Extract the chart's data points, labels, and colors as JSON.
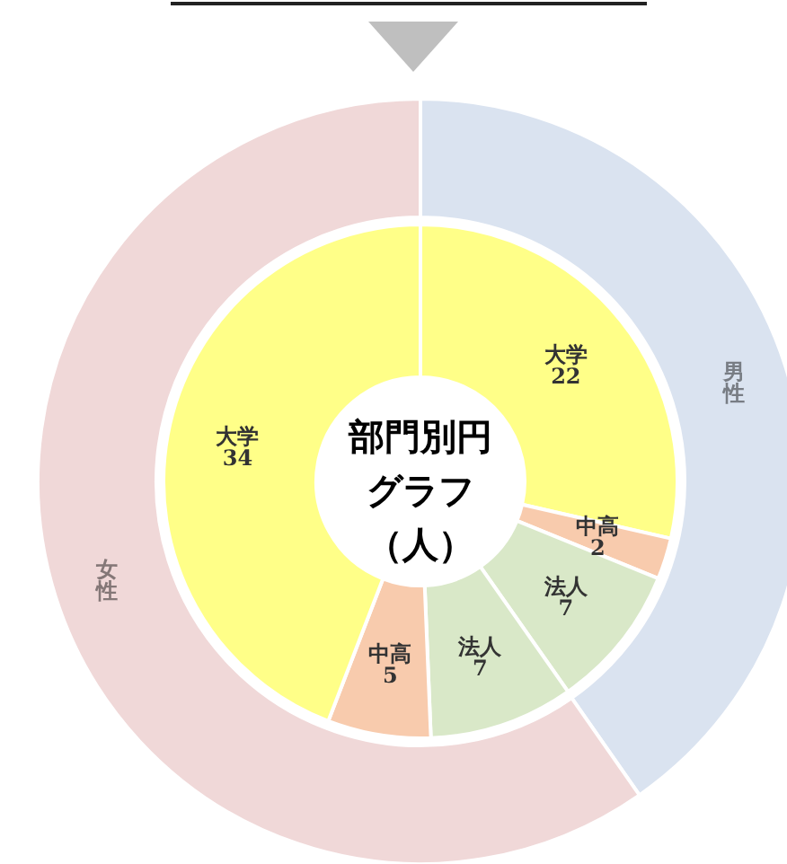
{
  "chart_data": [
    {
      "type": "donut",
      "title": "部門別円グラフ",
      "subtitle": "（人）",
      "legend": false,
      "categories": [
        "大学",
        "中高",
        "法人",
        "法人",
        "中高",
        "大学"
      ],
      "values": [
        22,
        2,
        7,
        7,
        5,
        34
      ],
      "colors": [
        "#ffff88",
        "#f8cbad",
        "#d9e8c8",
        "#d9e8c8",
        "#f8cbad",
        "#ffff88"
      ],
      "data_labels": true
    },
    {
      "type": "donut",
      "legend": false,
      "categories": [
        "男性",
        "女性"
      ],
      "values": [
        40.3,
        59.7
      ],
      "colors": [
        "#dae3f0",
        "#f0d8d8"
      ]
    }
  ]
}
